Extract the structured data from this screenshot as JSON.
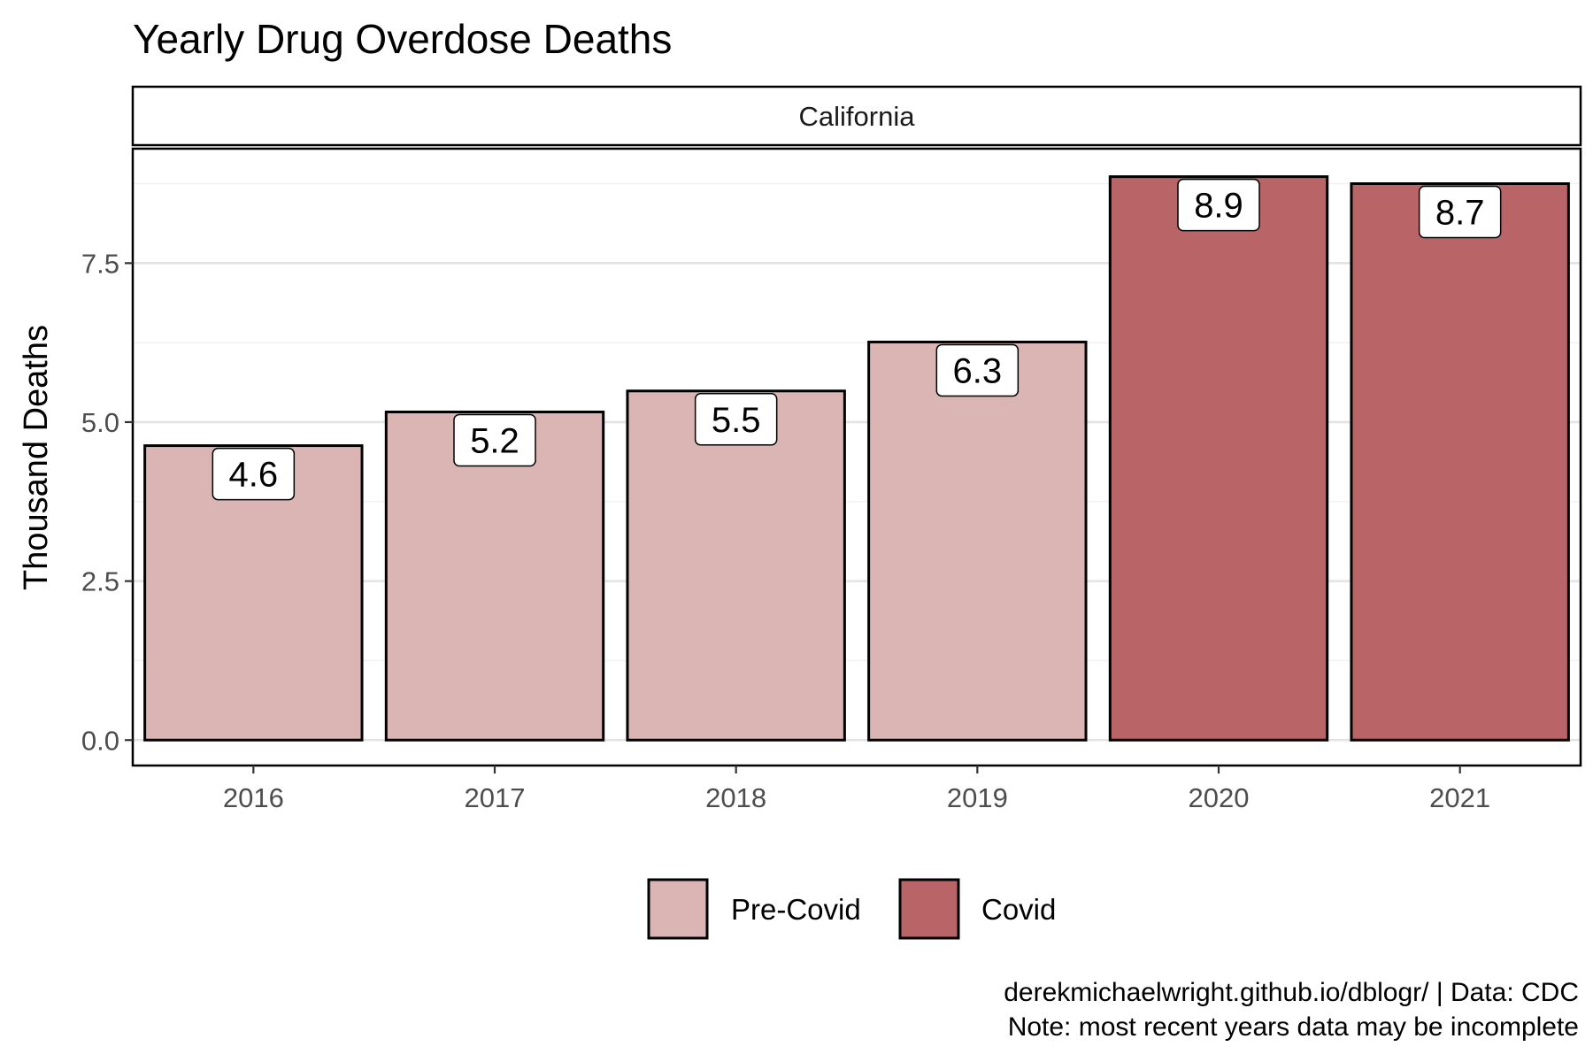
{
  "chart_data": {
    "type": "bar",
    "title": "Yearly Drug Overdose Deaths",
    "facet": "California",
    "categories": [
      "2016",
      "2017",
      "2018",
      "2019",
      "2020",
      "2021"
    ],
    "values": [
      4.63,
      5.16,
      5.49,
      6.26,
      8.86,
      8.75
    ],
    "value_labels": [
      "4.6",
      "5.2",
      "5.5",
      "6.3",
      "8.9",
      "8.7"
    ],
    "groups": [
      "Pre-Covid",
      "Pre-Covid",
      "Pre-Covid",
      "Pre-Covid",
      "Covid",
      "Covid"
    ],
    "xlabel": "",
    "ylabel": "Thousand Deaths",
    "ylim": [
      -0.4,
      9.3
    ],
    "yticks": [
      0,
      2.5,
      5,
      7.5
    ],
    "ytick_labels": [
      "0.0",
      "2.5",
      "5.0",
      "7.5"
    ],
    "grid": true,
    "legend": {
      "placement": "bottom",
      "entries": [
        {
          "name": "Pre-Covid",
          "color": "#dbb4b4"
        },
        {
          "name": "Covid",
          "color": "#b96567"
        }
      ]
    },
    "caption": [
      "derekmichaelwright.github.io/dblogr/ | Data: CDC",
      "Note: most recent years data may be incomplete"
    ]
  }
}
